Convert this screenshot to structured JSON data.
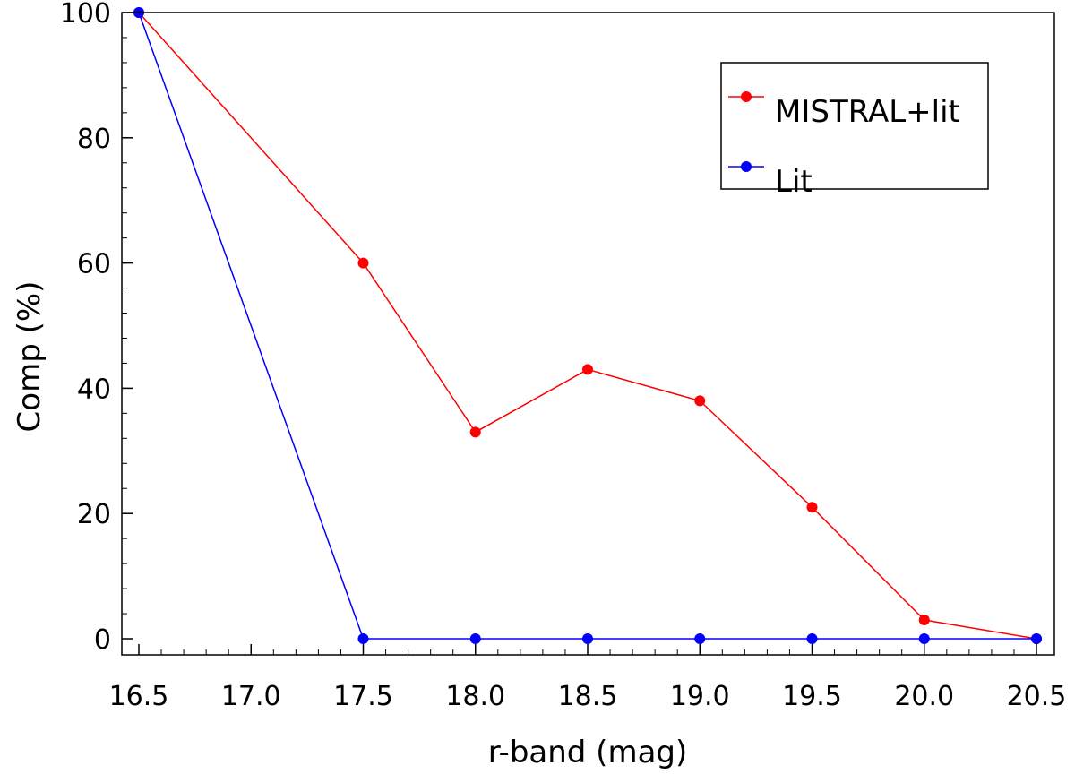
{
  "chart_data": {
    "type": "line",
    "title": "",
    "xlabel": "r-band (mag)",
    "ylabel": "Comp (%)",
    "xlim": [
      16.5,
      20.5
    ],
    "ylim": [
      0,
      100
    ],
    "xticks": [
      16.5,
      17.0,
      17.5,
      18.0,
      18.5,
      19.0,
      19.5,
      20.0,
      20.5
    ],
    "xtick_labels": [
      "16.5",
      "17.0",
      "17.5",
      "18.0",
      "18.5",
      "19.0",
      "19.5",
      "20.0",
      "20.5"
    ],
    "yticks": [
      0,
      20,
      40,
      60,
      80,
      100
    ],
    "ytick_labels": [
      "0",
      "20",
      "40",
      "60",
      "80",
      "100"
    ],
    "grid": false,
    "legend_position": "top-right",
    "series": [
      {
        "name": "MISTRAL+lit",
        "color": "#ff0000",
        "points": [
          [
            16.5,
            100
          ],
          [
            17.5,
            60
          ],
          [
            18.0,
            33
          ],
          [
            18.5,
            43
          ],
          [
            19.0,
            38
          ],
          [
            19.5,
            21
          ],
          [
            20.0,
            3
          ],
          [
            20.5,
            0
          ]
        ]
      },
      {
        "name": "Lit",
        "color": "#0000ff",
        "points": [
          [
            16.5,
            100
          ],
          [
            17.5,
            0
          ],
          [
            18.0,
            0
          ],
          [
            18.5,
            0
          ],
          [
            19.0,
            0
          ],
          [
            19.5,
            0
          ],
          [
            20.0,
            0
          ],
          [
            20.5,
            0
          ]
        ]
      }
    ]
  }
}
